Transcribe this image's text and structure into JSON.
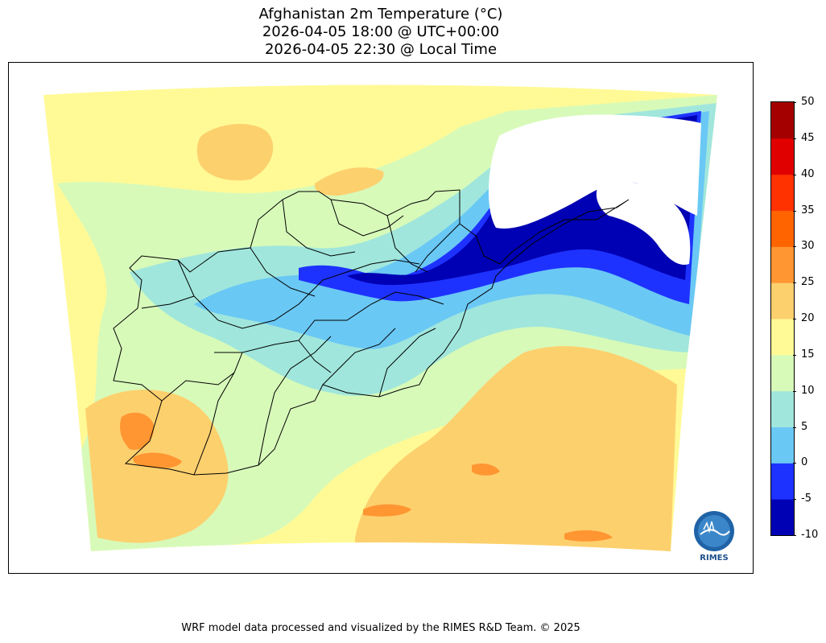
{
  "title": {
    "line1": "Afghanistan 2m Temperature (°C)",
    "line2": "2026-04-05 18:00 @ UTC+00:00",
    "line3": "2026-04-05 22:30 @ Local Time"
  },
  "colorbar": {
    "unit": "°C",
    "min": -10,
    "max": 50,
    "ticks": [
      "50",
      "45",
      "40",
      "35",
      "30",
      "25",
      "20",
      "15",
      "10",
      "5",
      "0",
      "-5",
      "-10"
    ],
    "bins": [
      {
        "from": -10,
        "to": -5,
        "color": "#0000b4"
      },
      {
        "from": -5,
        "to": 0,
        "color": "#1e32ff"
      },
      {
        "from": 0,
        "to": 5,
        "color": "#6ac8f5"
      },
      {
        "from": 5,
        "to": 10,
        "color": "#a0e6dc"
      },
      {
        "from": 10,
        "to": 15,
        "color": "#d7fab9"
      },
      {
        "from": 15,
        "to": 20,
        "color": "#fffa96"
      },
      {
        "from": 20,
        "to": 25,
        "color": "#fdd06e"
      },
      {
        "from": 25,
        "to": 30,
        "color": "#ff9632"
      },
      {
        "from": 30,
        "to": 35,
        "color": "#ff6400"
      },
      {
        "from": 35,
        "to": 40,
        "color": "#ff3200"
      },
      {
        "from": 40,
        "to": 45,
        "color": "#e10000"
      },
      {
        "from": 45,
        "to": 50,
        "color": "#a50000"
      }
    ]
  },
  "logo": {
    "text": "RIMES"
  },
  "footer": "WRF model data processed and visualized by the RIMES R&D Team. © 2025"
}
